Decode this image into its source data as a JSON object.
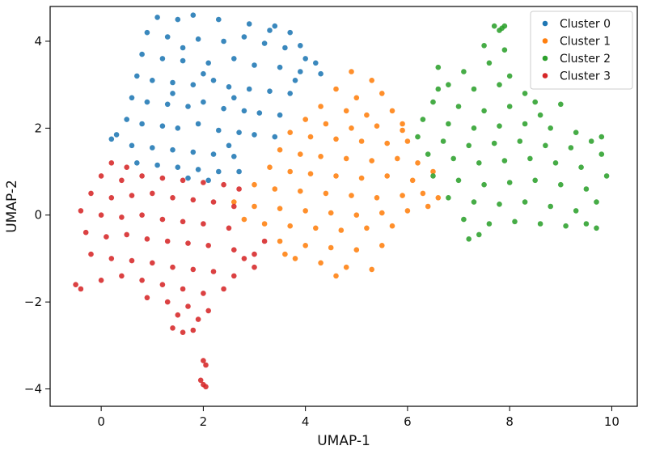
{
  "chart_data": {
    "type": "scatter",
    "title": "",
    "xlabel": "UMAP-1",
    "ylabel": "UMAP-2",
    "xlim": [
      -1.0,
      10.5
    ],
    "ylim": [
      -4.4,
      4.8
    ],
    "xticks": [
      0,
      2,
      4,
      6,
      8,
      10
    ],
    "yticks": [
      -4,
      -2,
      0,
      2,
      4
    ],
    "grid": false,
    "legend_position": "top-right",
    "series": [
      {
        "name": "Cluster 0",
        "color": "#1f77b4",
        "points": [
          [
            1.1,
            4.55
          ],
          [
            1.5,
            4.5
          ],
          [
            1.8,
            4.6
          ],
          [
            2.3,
            4.5
          ],
          [
            2.9,
            4.4
          ],
          [
            3.4,
            4.35
          ],
          [
            3.7,
            4.2
          ],
          [
            0.9,
            4.2
          ],
          [
            1.3,
            4.1
          ],
          [
            1.9,
            4.05
          ],
          [
            2.4,
            4.0
          ],
          [
            2.8,
            4.1
          ],
          [
            3.2,
            3.95
          ],
          [
            3.6,
            3.85
          ],
          [
            4.0,
            3.6
          ],
          [
            4.2,
            3.5
          ],
          [
            0.8,
            3.7
          ],
          [
            1.2,
            3.6
          ],
          [
            1.6,
            3.55
          ],
          [
            2.1,
            3.5
          ],
          [
            2.6,
            3.6
          ],
          [
            3.0,
            3.45
          ],
          [
            3.5,
            3.4
          ],
          [
            3.9,
            3.3
          ],
          [
            4.3,
            3.25
          ],
          [
            0.7,
            3.2
          ],
          [
            1.0,
            3.1
          ],
          [
            1.4,
            3.05
          ],
          [
            1.8,
            3.0
          ],
          [
            2.2,
            3.1
          ],
          [
            2.5,
            2.95
          ],
          [
            2.9,
            2.9
          ],
          [
            3.3,
            2.85
          ],
          [
            3.7,
            2.8
          ],
          [
            0.6,
            2.7
          ],
          [
            0.9,
            2.6
          ],
          [
            1.3,
            2.55
          ],
          [
            1.7,
            2.5
          ],
          [
            2.0,
            2.6
          ],
          [
            2.4,
            2.45
          ],
          [
            2.8,
            2.4
          ],
          [
            3.1,
            2.35
          ],
          [
            3.5,
            2.3
          ],
          [
            0.5,
            2.2
          ],
          [
            0.8,
            2.1
          ],
          [
            1.2,
            2.05
          ],
          [
            1.5,
            2.0
          ],
          [
            1.9,
            2.1
          ],
          [
            2.3,
            1.95
          ],
          [
            2.7,
            1.9
          ],
          [
            3.0,
            1.85
          ],
          [
            3.4,
            1.8
          ],
          [
            0.3,
            1.85
          ],
          [
            0.2,
            1.75
          ],
          [
            0.6,
            1.6
          ],
          [
            1.0,
            1.55
          ],
          [
            1.4,
            1.5
          ],
          [
            1.8,
            1.45
          ],
          [
            2.2,
            1.4
          ],
          [
            2.6,
            1.35
          ],
          [
            0.7,
            1.2
          ],
          [
            1.1,
            1.15
          ],
          [
            1.5,
            1.1
          ],
          [
            1.9,
            1.05
          ],
          [
            2.3,
            1.0
          ],
          [
            2.7,
            1.0
          ],
          [
            1.7,
            0.85
          ],
          [
            2.1,
            0.8
          ],
          [
            3.9,
            3.9
          ],
          [
            3.3,
            4.25
          ],
          [
            1.6,
            3.85
          ],
          [
            2.0,
            3.25
          ],
          [
            2.6,
            2.7
          ],
          [
            1.4,
            2.8
          ],
          [
            3.8,
            3.1
          ],
          [
            2.5,
            1.6
          ]
        ]
      },
      {
        "name": "Cluster 1",
        "color": "#ff7f0e",
        "points": [
          [
            4.9,
            3.3
          ],
          [
            5.3,
            3.1
          ],
          [
            4.6,
            2.9
          ],
          [
            5.0,
            2.7
          ],
          [
            5.5,
            2.8
          ],
          [
            4.3,
            2.5
          ],
          [
            4.8,
            2.4
          ],
          [
            5.2,
            2.3
          ],
          [
            5.7,
            2.4
          ],
          [
            4.0,
            2.2
          ],
          [
            4.4,
            2.1
          ],
          [
            4.9,
            2.0
          ],
          [
            5.4,
            2.05
          ],
          [
            5.9,
            2.1
          ],
          [
            3.7,
            1.9
          ],
          [
            4.1,
            1.8
          ],
          [
            4.6,
            1.75
          ],
          [
            5.1,
            1.7
          ],
          [
            5.6,
            1.65
          ],
          [
            6.0,
            1.7
          ],
          [
            3.5,
            1.5
          ],
          [
            3.9,
            1.4
          ],
          [
            4.3,
            1.35
          ],
          [
            4.8,
            1.3
          ],
          [
            5.3,
            1.25
          ],
          [
            5.8,
            1.3
          ],
          [
            6.2,
            1.2
          ],
          [
            3.3,
            1.1
          ],
          [
            3.7,
            1.0
          ],
          [
            4.1,
            0.95
          ],
          [
            4.6,
            0.9
          ],
          [
            5.1,
            0.85
          ],
          [
            5.6,
            0.9
          ],
          [
            6.1,
            0.8
          ],
          [
            6.5,
            1.0
          ],
          [
            3.0,
            0.7
          ],
          [
            3.4,
            0.6
          ],
          [
            3.9,
            0.55
          ],
          [
            4.4,
            0.5
          ],
          [
            4.9,
            0.45
          ],
          [
            5.4,
            0.4
          ],
          [
            5.9,
            0.45
          ],
          [
            6.3,
            0.5
          ],
          [
            2.6,
            0.3
          ],
          [
            3.0,
            0.2
          ],
          [
            3.5,
            0.15
          ],
          [
            4.0,
            0.1
          ],
          [
            4.5,
            0.05
          ],
          [
            5.0,
            0.0
          ],
          [
            5.5,
            0.05
          ],
          [
            6.0,
            0.1
          ],
          [
            6.4,
            0.2
          ],
          [
            2.8,
            -0.1
          ],
          [
            3.2,
            -0.2
          ],
          [
            3.7,
            -0.25
          ],
          [
            4.2,
            -0.3
          ],
          [
            4.7,
            -0.35
          ],
          [
            5.2,
            -0.3
          ],
          [
            5.7,
            -0.25
          ],
          [
            3.5,
            -0.6
          ],
          [
            4.0,
            -0.7
          ],
          [
            4.5,
            -0.75
          ],
          [
            5.0,
            -0.8
          ],
          [
            5.5,
            -0.7
          ],
          [
            3.8,
            -1.0
          ],
          [
            4.3,
            -1.1
          ],
          [
            4.8,
            -1.2
          ],
          [
            5.3,
            -1.25
          ],
          [
            4.6,
            -1.4
          ],
          [
            3.6,
            -0.9
          ],
          [
            6.6,
            0.4
          ],
          [
            5.9,
            1.95
          ]
        ]
      },
      {
        "name": "Cluster 2",
        "color": "#2ca02c",
        "points": [
          [
            7.7,
            4.35
          ],
          [
            7.85,
            4.3
          ],
          [
            7.8,
            4.25
          ],
          [
            7.9,
            4.35
          ],
          [
            7.5,
            3.9
          ],
          [
            7.9,
            3.8
          ],
          [
            6.6,
            3.4
          ],
          [
            7.1,
            3.3
          ],
          [
            7.6,
            3.5
          ],
          [
            8.0,
            3.2
          ],
          [
            6.8,
            3.0
          ],
          [
            7.3,
            2.9
          ],
          [
            7.8,
            3.0
          ],
          [
            8.3,
            2.8
          ],
          [
            6.5,
            2.6
          ],
          [
            7.0,
            2.5
          ],
          [
            7.5,
            2.4
          ],
          [
            8.0,
            2.5
          ],
          [
            8.5,
            2.6
          ],
          [
            9.0,
            2.55
          ],
          [
            6.3,
            2.2
          ],
          [
            6.8,
            2.1
          ],
          [
            7.3,
            2.0
          ],
          [
            7.8,
            2.05
          ],
          [
            8.3,
            2.1
          ],
          [
            8.8,
            2.0
          ],
          [
            9.3,
            1.9
          ],
          [
            6.2,
            1.8
          ],
          [
            6.7,
            1.7
          ],
          [
            7.2,
            1.6
          ],
          [
            7.7,
            1.65
          ],
          [
            8.2,
            1.7
          ],
          [
            8.7,
            1.6
          ],
          [
            9.2,
            1.55
          ],
          [
            9.6,
            1.7
          ],
          [
            6.4,
            1.4
          ],
          [
            6.9,
            1.3
          ],
          [
            7.4,
            1.2
          ],
          [
            7.9,
            1.25
          ],
          [
            8.4,
            1.3
          ],
          [
            8.9,
            1.2
          ],
          [
            9.4,
            1.1
          ],
          [
            9.8,
            1.4
          ],
          [
            6.5,
            0.9
          ],
          [
            7.0,
            0.8
          ],
          [
            7.5,
            0.7
          ],
          [
            8.0,
            0.75
          ],
          [
            8.5,
            0.8
          ],
          [
            9.0,
            0.7
          ],
          [
            9.5,
            0.6
          ],
          [
            9.9,
            0.9
          ],
          [
            6.8,
            0.4
          ],
          [
            7.3,
            0.3
          ],
          [
            7.8,
            0.25
          ],
          [
            8.3,
            0.3
          ],
          [
            8.8,
            0.2
          ],
          [
            9.3,
            0.1
          ],
          [
            9.7,
            0.3
          ],
          [
            7.1,
            -0.1
          ],
          [
            7.6,
            -0.2
          ],
          [
            8.1,
            -0.15
          ],
          [
            8.6,
            -0.2
          ],
          [
            9.1,
            -0.25
          ],
          [
            9.5,
            -0.2
          ],
          [
            7.4,
            -0.45
          ],
          [
            7.2,
            -0.55
          ],
          [
            9.7,
            -0.3
          ],
          [
            9.8,
            1.8
          ],
          [
            6.6,
            2.9
          ],
          [
            8.6,
            2.3
          ]
        ]
      },
      {
        "name": "Cluster 3",
        "color": "#d62728",
        "points": [
          [
            0.2,
            1.2
          ],
          [
            0.5,
            1.1
          ],
          [
            0.0,
            0.9
          ],
          [
            0.4,
            0.8
          ],
          [
            0.8,
            0.9
          ],
          [
            1.2,
            0.85
          ],
          [
            1.6,
            0.8
          ],
          [
            2.0,
            0.75
          ],
          [
            2.4,
            0.7
          ],
          [
            2.7,
            0.6
          ],
          [
            -0.2,
            0.5
          ],
          [
            0.2,
            0.4
          ],
          [
            0.6,
            0.45
          ],
          [
            1.0,
            0.5
          ],
          [
            1.4,
            0.4
          ],
          [
            1.8,
            0.35
          ],
          [
            2.2,
            0.3
          ],
          [
            2.6,
            0.2
          ],
          [
            -0.4,
            0.1
          ],
          [
            0.0,
            0.0
          ],
          [
            0.4,
            -0.05
          ],
          [
            0.8,
            0.0
          ],
          [
            1.2,
            -0.1
          ],
          [
            1.6,
            -0.15
          ],
          [
            2.0,
            -0.2
          ],
          [
            2.5,
            -0.3
          ],
          [
            -0.3,
            -0.4
          ],
          [
            0.1,
            -0.5
          ],
          [
            0.5,
            -0.45
          ],
          [
            0.9,
            -0.55
          ],
          [
            1.3,
            -0.6
          ],
          [
            1.7,
            -0.65
          ],
          [
            2.1,
            -0.7
          ],
          [
            2.6,
            -0.8
          ],
          [
            3.0,
            -0.9
          ],
          [
            -0.2,
            -0.9
          ],
          [
            0.2,
            -1.0
          ],
          [
            0.6,
            -1.05
          ],
          [
            1.0,
            -1.1
          ],
          [
            1.4,
            -1.2
          ],
          [
            1.8,
            -1.25
          ],
          [
            2.2,
            -1.3
          ],
          [
            2.6,
            -1.4
          ],
          [
            3.0,
            -1.2
          ],
          [
            -0.5,
            -1.6
          ],
          [
            -0.4,
            -1.7
          ],
          [
            0.0,
            -1.5
          ],
          [
            0.4,
            -1.4
          ],
          [
            0.8,
            -1.5
          ],
          [
            1.2,
            -1.6
          ],
          [
            1.6,
            -1.7
          ],
          [
            2.0,
            -1.8
          ],
          [
            2.4,
            -1.7
          ],
          [
            0.9,
            -1.9
          ],
          [
            1.3,
            -2.0
          ],
          [
            1.7,
            -2.1
          ],
          [
            2.1,
            -2.2
          ],
          [
            1.5,
            -2.3
          ],
          [
            1.9,
            -2.4
          ],
          [
            1.4,
            -2.6
          ],
          [
            1.6,
            -2.7
          ],
          [
            1.8,
            -2.65
          ],
          [
            2.0,
            -3.35
          ],
          [
            2.05,
            -3.45
          ],
          [
            1.95,
            -3.8
          ],
          [
            2.0,
            -3.9
          ],
          [
            2.05,
            -3.95
          ],
          [
            3.2,
            -0.6
          ],
          [
            2.8,
            -1.0
          ]
        ]
      }
    ]
  }
}
